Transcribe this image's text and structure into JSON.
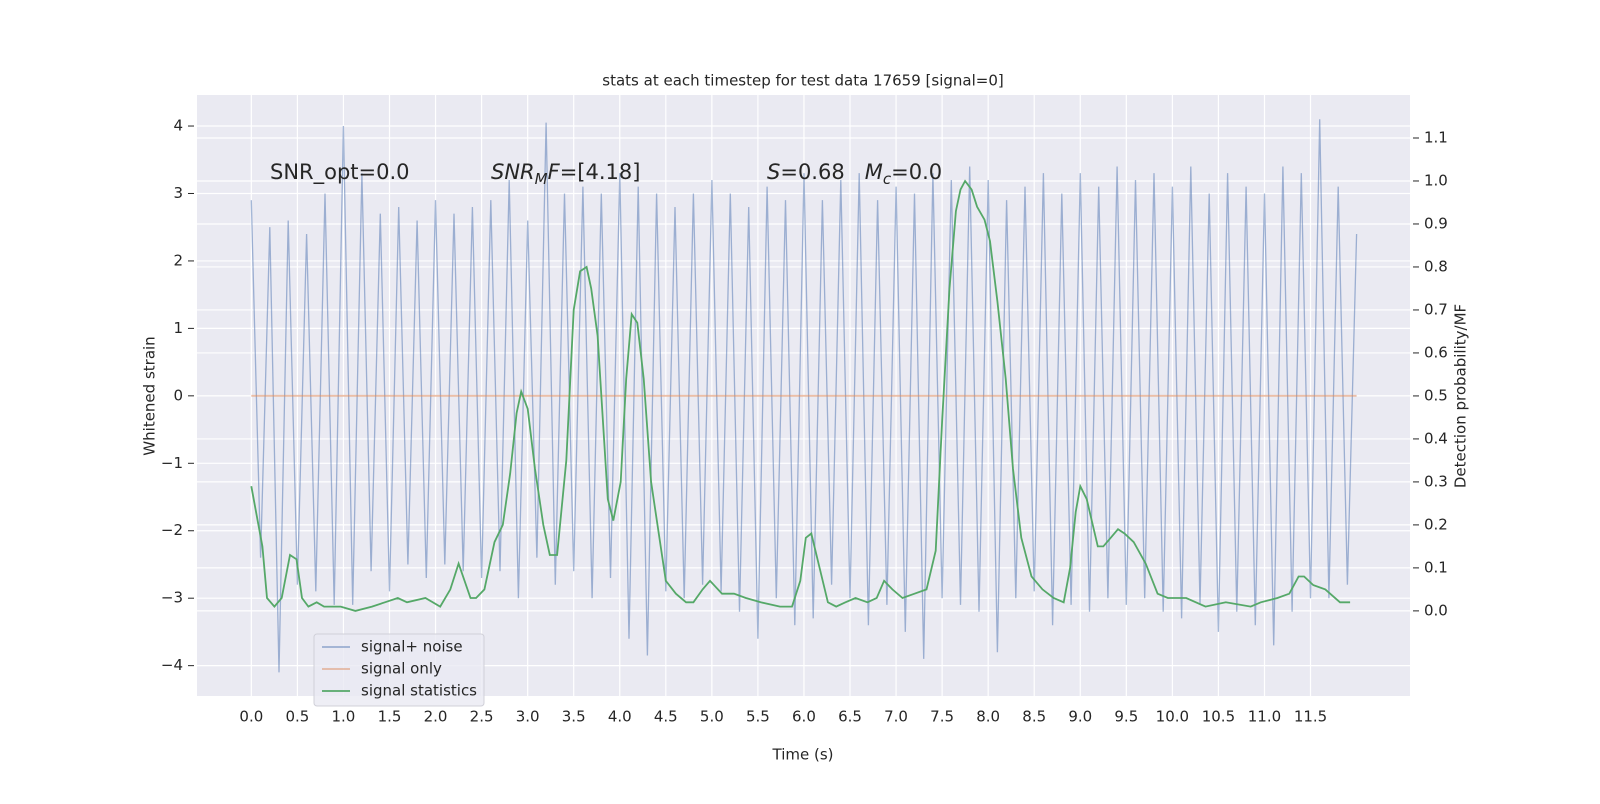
{
  "chart_data": {
    "type": "line",
    "title": "stats at each timestep for test data 17659 [signal=0]",
    "xlabel": "Time (s)",
    "ylabel": "Whitened strain",
    "y2label": "Detection probability/MF",
    "annotations": [
      [
        {
          "text": "SNR_opt=0.0",
          "style": "normal"
        }
      ],
      [
        {
          "text": "SNR",
          "style": "italic"
        },
        {
          "text": "M",
          "style": "sub"
        },
        {
          "text": "F",
          "style": "italic"
        },
        {
          "text": "=[4.18]",
          "style": "normal"
        }
      ],
      [
        {
          "text": "S",
          "style": "italic"
        },
        {
          "text": "=0.68   ",
          "style": "normal"
        },
        {
          "text": "M",
          "style": "italic"
        },
        {
          "text": "c",
          "style": "sub"
        },
        {
          "text": "=0.0",
          "style": "normal"
        }
      ]
    ],
    "xlim": [
      -0.59,
      12.58
    ],
    "ylim": [
      -4.45,
      4.46
    ],
    "y2lim": [
      -0.198,
      1.2
    ],
    "xticks": [
      {
        "value": 0,
        "label": "0.0"
      },
      0.5,
      {
        "value": 1,
        "label": "1.0"
      },
      1.5,
      {
        "value": 2,
        "label": "2.0"
      },
      2.5,
      {
        "value": 3,
        "label": "3.0"
      },
      3.5,
      {
        "value": 4,
        "label": "4.0"
      },
      4.5,
      {
        "value": 5,
        "label": "5.0"
      },
      5.5,
      {
        "value": 6,
        "label": "6.0"
      },
      6.5,
      {
        "value": 7,
        "label": "7.0"
      },
      7.5,
      {
        "value": 8,
        "label": "8.0"
      },
      8.5,
      {
        "value": 9,
        "label": "9.0"
      },
      9.5,
      {
        "value": 10,
        "label": "10.0"
      },
      10.5,
      {
        "value": 11,
        "label": "11.0"
      },
      11.5
    ],
    "yticks": [
      {
        "value": -4,
        "label": "−4"
      },
      {
        "value": -3,
        "label": "−3"
      },
      {
        "value": -2,
        "label": "−2"
      },
      {
        "value": -1,
        "label": "−1"
      },
      0,
      1,
      2,
      3,
      4
    ],
    "y2ticks": [
      {
        "value": 0,
        "label": "0.0"
      },
      0.1,
      0.2,
      0.3,
      0.4,
      0.5,
      0.6,
      0.7,
      0.8,
      0.9,
      {
        "value": 1,
        "label": "1.0"
      },
      1.1
    ],
    "grid": true,
    "legend": "lower left",
    "series": [
      {
        "name": "signal+ noise",
        "color": "#4c72b0",
        "opacity": 0.5,
        "x": [
          0.0,
          0.1,
          0.2,
          0.3,
          0.4,
          0.5,
          0.6,
          0.7,
          0.8,
          0.9,
          1.0,
          1.1,
          1.2,
          1.3,
          1.4,
          1.5,
          1.6,
          1.7,
          1.8,
          1.9,
          2.0,
          2.1,
          2.2,
          2.3,
          2.4,
          2.5,
          2.6,
          2.7,
          2.8,
          2.9,
          3.0,
          3.1,
          3.2,
          3.3,
          3.4,
          3.5,
          3.6,
          3.7,
          3.8,
          3.9,
          4.0,
          4.1,
          4.2,
          4.3,
          4.4,
          4.5,
          4.6,
          4.7,
          4.8,
          4.9,
          5.0,
          5.1,
          5.2,
          5.3,
          5.4,
          5.5,
          5.6,
          5.7,
          5.8,
          5.9,
          6.0,
          6.1,
          6.2,
          6.3,
          6.4,
          6.5,
          6.6,
          6.7,
          6.8,
          6.9,
          7.0,
          7.1,
          7.2,
          7.3,
          7.4,
          7.5,
          7.6,
          7.7,
          7.8,
          7.9,
          8.0,
          8.1,
          8.2,
          8.3,
          8.4,
          8.5,
          8.6,
          8.7,
          8.8,
          8.9,
          9.0,
          9.1,
          9.2,
          9.3,
          9.4,
          9.5,
          9.6,
          9.7,
          9.8,
          9.9,
          10.0,
          10.1,
          10.2,
          10.3,
          10.4,
          10.5,
          10.6,
          10.7,
          10.8,
          10.9,
          11.0,
          11.1,
          11.2,
          11.3,
          11.4,
          11.5,
          11.6,
          11.7,
          11.8,
          11.9,
          12.0
        ],
        "values": [
          2.9,
          -2.4,
          2.5,
          -4.1,
          2.6,
          -2.8,
          2.4,
          -2.9,
          3.0,
          -3.1,
          4.0,
          -3.1,
          3.3,
          -2.6,
          2.7,
          -2.9,
          2.8,
          -2.5,
          2.6,
          -2.7,
          2.9,
          -2.5,
          2.7,
          -2.6,
          2.8,
          -2.7,
          2.9,
          -2.6,
          3.2,
          -3.0,
          2.6,
          -2.4,
          4.05,
          -2.8,
          3.0,
          -2.6,
          3.1,
          -3.0,
          3.0,
          -2.7,
          3.3,
          -3.6,
          3.1,
          -3.85,
          3.0,
          -2.9,
          2.8,
          -3.0,
          3.0,
          -2.8,
          3.2,
          -2.9,
          3.0,
          -3.2,
          2.8,
          -3.6,
          3.1,
          -3.0,
          2.9,
          -3.4,
          3.3,
          -3.3,
          2.9,
          -2.8,
          3.2,
          -3.0,
          3.3,
          -3.4,
          2.9,
          -3.1,
          3.1,
          -3.5,
          3.0,
          -3.9,
          3.3,
          -3.0,
          3.2,
          -3.1,
          3.4,
          -3.2,
          3.2,
          -3.8,
          2.9,
          -3.0,
          3.1,
          -2.9,
          3.3,
          -3.4,
          3.0,
          -3.1,
          3.3,
          -3.2,
          3.1,
          -3.0,
          3.4,
          -3.1,
          3.2,
          -3.0,
          3.3,
          -3.2,
          3.1,
          -3.3,
          3.4,
          -3.1,
          3.0,
          -3.5,
          3.3,
          -3.2,
          3.1,
          -3.4,
          3.0,
          -3.7,
          3.4,
          -3.2,
          3.3,
          -3.0,
          4.1,
          -3.0,
          3.1,
          -2.8,
          2.4
        ]
      },
      {
        "name": "signal only",
        "color": "#dd8452",
        "opacity": 0.5,
        "x": [
          0.0,
          12.0
        ],
        "values": [
          0,
          0
        ]
      },
      {
        "name": "signal statistics",
        "color": "#55a868",
        "opacity": 1,
        "axis": "y2",
        "x": [
          0.0,
          0.12,
          0.17,
          0.25,
          0.33,
          0.42,
          0.49,
          0.55,
          0.62,
          0.71,
          0.79,
          0.97,
          1.13,
          1.31,
          1.45,
          1.59,
          1.69,
          1.89,
          2.05,
          2.16,
          2.25,
          2.38,
          2.44,
          2.53,
          2.64,
          2.73,
          2.81,
          2.88,
          2.93,
          3.0,
          3.08,
          3.17,
          3.24,
          3.32,
          3.42,
          3.5,
          3.57,
          3.64,
          3.69,
          3.76,
          3.87,
          3.93,
          4.01,
          4.07,
          4.13,
          4.19,
          4.26,
          4.34,
          4.43,
          4.5,
          4.61,
          4.72,
          4.8,
          4.9,
          4.98,
          5.11,
          5.24,
          5.37,
          5.53,
          5.74,
          5.87,
          5.96,
          6.02,
          6.08,
          6.17,
          6.26,
          6.35,
          6.45,
          6.56,
          6.69,
          6.79,
          6.87,
          6.96,
          7.07,
          7.2,
          7.33,
          7.43,
          7.5,
          7.58,
          7.65,
          7.7,
          7.75,
          7.82,
          7.88,
          7.96,
          8.02,
          8.1,
          8.19,
          8.27,
          8.36,
          8.47,
          8.59,
          8.71,
          8.82,
          8.89,
          8.95,
          9.0,
          9.07,
          9.19,
          9.25,
          9.33,
          9.41,
          9.48,
          9.58,
          9.71,
          9.84,
          9.95,
          10.15,
          10.36,
          10.58,
          10.85,
          10.96,
          11.14,
          11.27,
          11.37,
          11.43,
          11.53,
          11.66,
          11.82,
          11.93
        ],
        "values": [
          0.29,
          0.15,
          0.03,
          0.01,
          0.03,
          0.13,
          0.12,
          0.03,
          0.01,
          0.02,
          0.01,
          0.01,
          0.0,
          0.01,
          0.02,
          0.03,
          0.02,
          0.03,
          0.01,
          0.05,
          0.11,
          0.03,
          0.03,
          0.05,
          0.16,
          0.2,
          0.32,
          0.46,
          0.51,
          0.47,
          0.33,
          0.2,
          0.13,
          0.13,
          0.35,
          0.7,
          0.79,
          0.8,
          0.75,
          0.64,
          0.26,
          0.21,
          0.3,
          0.54,
          0.69,
          0.67,
          0.54,
          0.3,
          0.17,
          0.07,
          0.04,
          0.02,
          0.02,
          0.05,
          0.07,
          0.04,
          0.04,
          0.03,
          0.02,
          0.01,
          0.01,
          0.07,
          0.17,
          0.18,
          0.1,
          0.02,
          0.01,
          0.02,
          0.03,
          0.02,
          0.03,
          0.07,
          0.05,
          0.03,
          0.04,
          0.05,
          0.14,
          0.44,
          0.75,
          0.93,
          0.98,
          1.0,
          0.98,
          0.94,
          0.91,
          0.86,
          0.72,
          0.54,
          0.33,
          0.17,
          0.08,
          0.05,
          0.03,
          0.02,
          0.1,
          0.23,
          0.29,
          0.26,
          0.15,
          0.15,
          0.17,
          0.19,
          0.18,
          0.16,
          0.11,
          0.04,
          0.03,
          0.03,
          0.01,
          0.02,
          0.01,
          0.02,
          0.03,
          0.04,
          0.08,
          0.08,
          0.06,
          0.05,
          0.02,
          0.02
        ]
      }
    ]
  }
}
